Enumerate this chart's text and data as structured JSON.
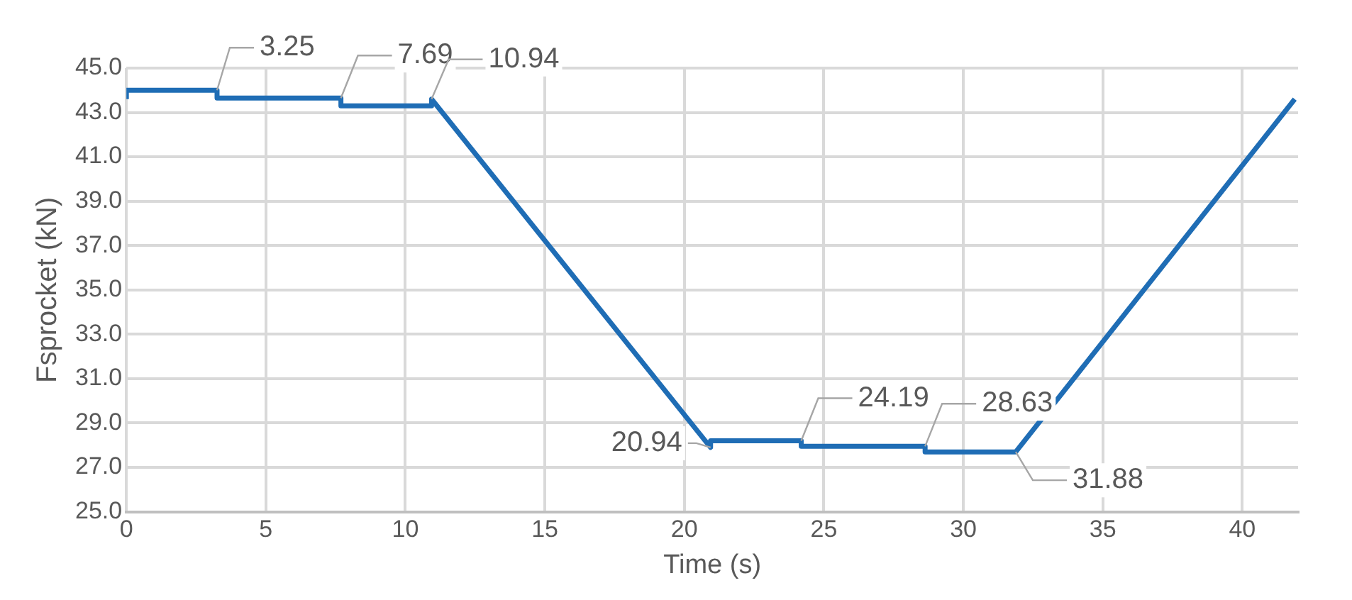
{
  "chart_data": {
    "type": "line",
    "xlabel": "Time (s)",
    "ylabel": "Fsprocket (kN)",
    "x": [
      0,
      0,
      3.25,
      3.25,
      7.69,
      7.69,
      10.94,
      10.94,
      20.94,
      20.94,
      24.19,
      24.19,
      28.63,
      28.63,
      31.88,
      41.88
    ],
    "series": [
      {
        "color": "#1f6db5",
        "values": [
          43.6,
          44.0,
          44.0,
          43.65,
          43.65,
          43.3,
          43.3,
          43.6,
          27.9,
          28.2,
          28.2,
          27.95,
          27.95,
          27.7,
          27.7,
          43.6
        ]
      }
    ],
    "xlim": [
      0,
      42
    ],
    "xticks": [
      0,
      5,
      10,
      15,
      20,
      25,
      30,
      35,
      40
    ],
    "ylim": [
      25,
      45
    ],
    "yticks": [
      {
        "value": 25,
        "label": "25.0"
      },
      {
        "value": 27,
        "label": "27.0"
      },
      {
        "value": 29,
        "label": "29.0"
      },
      {
        "value": 31,
        "label": "31.0"
      },
      {
        "value": 33,
        "label": "33.0"
      },
      {
        "value": 35,
        "label": "35.0"
      },
      {
        "value": 37,
        "label": "37.0"
      },
      {
        "value": 39,
        "label": "39.0"
      },
      {
        "value": 41,
        "label": "41.0"
      },
      {
        "value": 43,
        "label": "43.0"
      },
      {
        "value": 45,
        "label": "45.0"
      }
    ],
    "grid": true,
    "legend": false,
    "marker": "none",
    "line_style": "solid",
    "annotations": [
      {
        "text": "3.25",
        "x": 3.25,
        "y": 44.0
      },
      {
        "text": "7.69",
        "x": 7.69,
        "y": 43.65
      },
      {
        "text": "10.94",
        "x": 10.94,
        "y": 43.6
      },
      {
        "text": "20.94",
        "x": 20.94,
        "y": 27.9
      },
      {
        "text": "24.19",
        "x": 24.19,
        "y": 28.2
      },
      {
        "text": "28.63",
        "x": 28.63,
        "y": 27.95
      },
      {
        "text": "31.88",
        "x": 31.88,
        "y": 27.7
      }
    ]
  }
}
